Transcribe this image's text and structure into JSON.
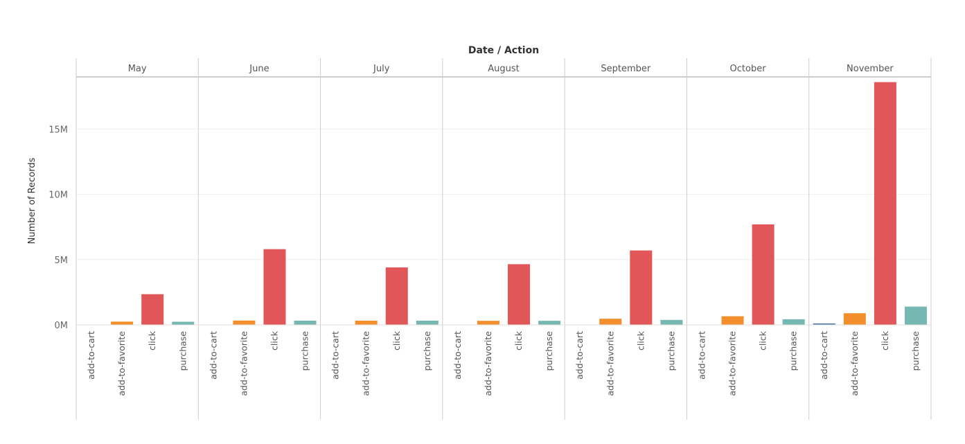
{
  "chart_data": {
    "type": "bar",
    "title": "Date / Action",
    "ylabel": "Number of Records",
    "ylim": [
      0,
      19000000
    ],
    "yticks": [
      {
        "value": 0,
        "label": "0M"
      },
      {
        "value": 5000000,
        "label": "5M"
      },
      {
        "value": 10000000,
        "label": "10M"
      },
      {
        "value": 15000000,
        "label": "15M"
      }
    ],
    "grid": true,
    "actions": [
      "add-to-cart",
      "add-to-favorite",
      "click",
      "purchase"
    ],
    "colors": {
      "add-to-cart": "#4e79a7",
      "add-to-favorite": "#f28e2b",
      "click": "#e15759",
      "purchase": "#76b7b2"
    },
    "months": [
      {
        "name": "May",
        "values": [
          0,
          250000,
          2350000,
          240000
        ]
      },
      {
        "name": "June",
        "values": [
          0,
          330000,
          5800000,
          320000
        ]
      },
      {
        "name": "July",
        "values": [
          0,
          320000,
          4400000,
          320000
        ]
      },
      {
        "name": "August",
        "values": [
          0,
          310000,
          4650000,
          310000
        ]
      },
      {
        "name": "September",
        "values": [
          0,
          470000,
          5700000,
          380000
        ]
      },
      {
        "name": "October",
        "values": [
          0,
          660000,
          7700000,
          430000
        ]
      },
      {
        "name": "November",
        "values": [
          110000,
          890000,
          18600000,
          1400000
        ]
      }
    ]
  }
}
